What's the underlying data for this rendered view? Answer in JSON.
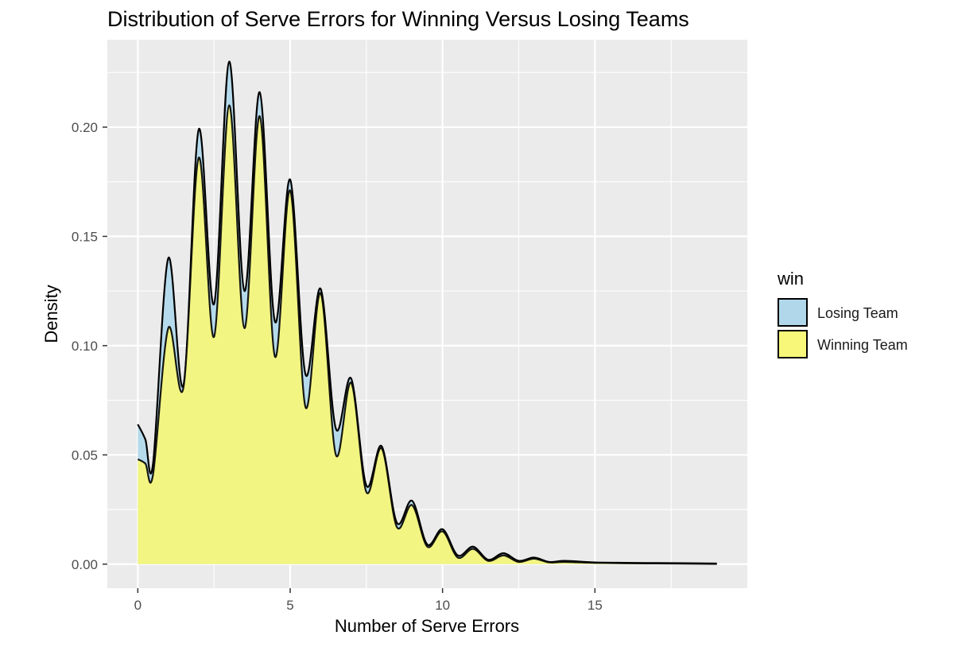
{
  "chart_data": {
    "type": "area",
    "title": "Distribution of Serve Errors for Winning Versus Losing Teams",
    "xlabel": "Number of Serve Errors",
    "ylabel": "Density",
    "xlim": [
      -1,
      20
    ],
    "ylim": [
      -0.011,
      0.24
    ],
    "xticks": [
      0,
      5,
      10,
      15
    ],
    "xtick_labels": [
      "0",
      "5",
      "10",
      "15"
    ],
    "yticks": [
      0,
      0.05,
      0.1,
      0.15,
      0.2
    ],
    "ytick_labels": [
      "0.00",
      "0.05",
      "0.10",
      "0.15",
      "0.20"
    ],
    "grid": true,
    "legend": {
      "title": "win",
      "position": "right",
      "entries": [
        "Losing Team",
        "Winning Team"
      ]
    },
    "series": [
      {
        "name": "Losing Team",
        "color": "#b0d8ea",
        "x": [
          0,
          0.25,
          0.5,
          1,
          1.5,
          2,
          2.5,
          3,
          3.5,
          4,
          4.5,
          5,
          5.5,
          6,
          6.5,
          7,
          7.5,
          8,
          8.5,
          9,
          9.5,
          10,
          10.5,
          11,
          11.5,
          12,
          12.5,
          13,
          13.5,
          14,
          15,
          16,
          17,
          18,
          19
        ],
        "y": [
          0.064,
          0.057,
          0.046,
          0.14,
          0.082,
          0.199,
          0.119,
          0.23,
          0.125,
          0.216,
          0.111,
          0.176,
          0.087,
          0.126,
          0.062,
          0.085,
          0.036,
          0.054,
          0.019,
          0.029,
          0.009,
          0.016,
          0.004,
          0.008,
          0.002,
          0.005,
          0.0015,
          0.003,
          0.001,
          0.0015,
          0.0008,
          0.0006,
          0.0005,
          0.0004,
          0.0003
        ]
      },
      {
        "name": "Winning Team",
        "color": "#f8f77a",
        "x": [
          0,
          0.25,
          0.5,
          1,
          1.5,
          2,
          2.5,
          3,
          3.5,
          4,
          4.5,
          5,
          5.5,
          6,
          6.5,
          7,
          7.5,
          8,
          8.5,
          9,
          9.5,
          10,
          10.5,
          11,
          11.5,
          12,
          12.5,
          13,
          13.5,
          14,
          15,
          16,
          17,
          18,
          19
        ],
        "y": [
          0.048,
          0.046,
          0.041,
          0.108,
          0.081,
          0.186,
          0.104,
          0.21,
          0.108,
          0.205,
          0.095,
          0.171,
          0.072,
          0.124,
          0.05,
          0.083,
          0.033,
          0.053,
          0.017,
          0.027,
          0.008,
          0.015,
          0.003,
          0.007,
          0.0015,
          0.004,
          0.001,
          0.0025,
          0.0008,
          0.001,
          0.0006,
          0.0004,
          0.0003,
          0.0002,
          0.0001
        ]
      }
    ]
  }
}
